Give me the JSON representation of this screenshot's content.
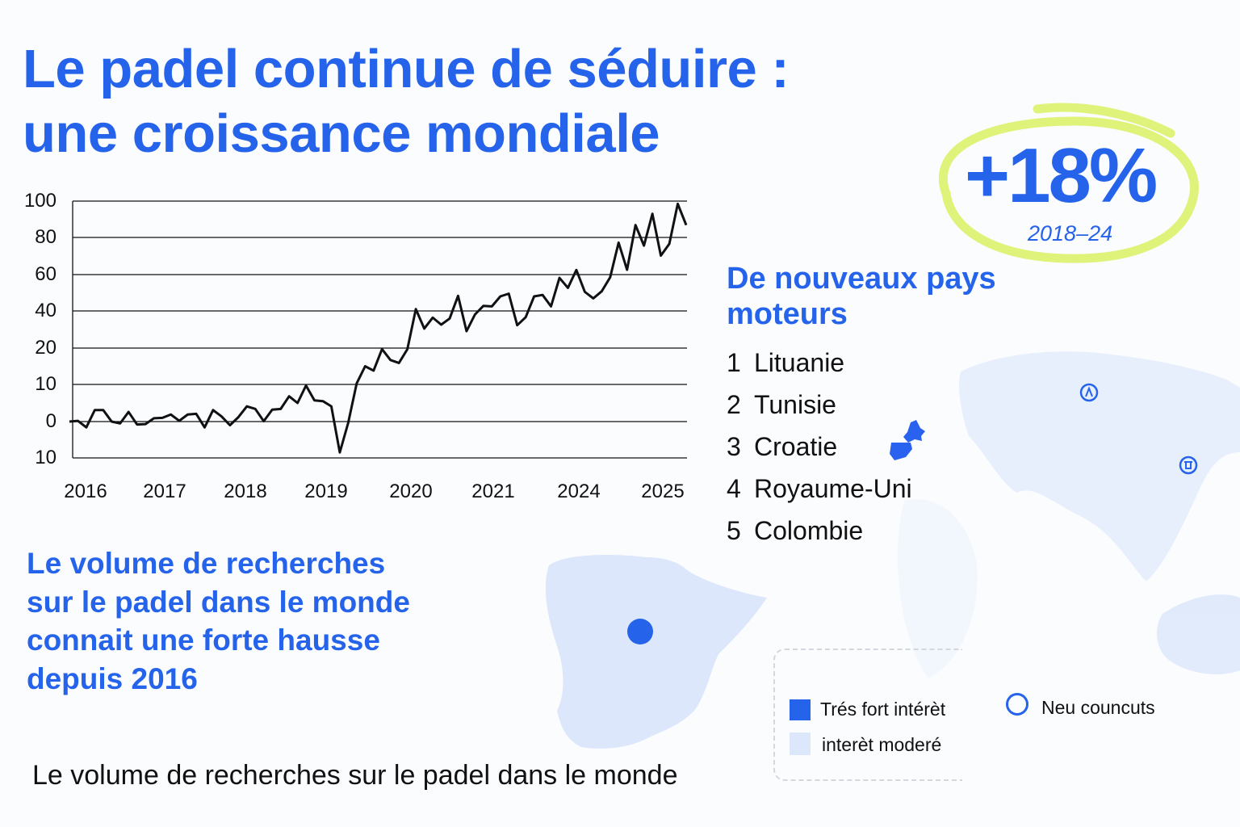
{
  "colors": {
    "accent": "#2563eb",
    "highlight": "#dff27a",
    "map_light": "#dde7fb",
    "line": "#111111"
  },
  "title": {
    "line1": "Le padel continue de séduire :",
    "line2": "une croissance mondiale"
  },
  "badge": {
    "value": "+18%",
    "period": "2018–24"
  },
  "countries": {
    "heading_line1": "De nouveaux pays",
    "heading_line2": "moteurs",
    "items": [
      {
        "rank": "1",
        "name": "Lituanie"
      },
      {
        "rank": "2",
        "name": "Tunisie"
      },
      {
        "rank": "3",
        "name": "Croatie"
      },
      {
        "rank": "4",
        "name": "Royaume-Uni"
      },
      {
        "rank": "5",
        "name": "Colombie"
      }
    ]
  },
  "description": {
    "lines": [
      "Le volume de recherches",
      "sur le padel dans le monde",
      "connait une forte hausse",
      "depuis 2016"
    ]
  },
  "caption": "Le volume de recherches sur le padel dans le monde",
  "legend": {
    "items": [
      {
        "label": "Trés fort intérèt",
        "color": "#2563eb",
        "icon": "filled-square"
      },
      {
        "label": "interèt moderé",
        "color": "#dde7fb",
        "icon": "light-square"
      },
      {
        "label": "Neu councuts",
        "color": "#2563eb",
        "icon": "ring"
      }
    ]
  },
  "map": {
    "icons": [
      "mountain-badge-icon",
      "gate-badge-icon"
    ],
    "marker": "spain-dot"
  },
  "chart_data": {
    "type": "line",
    "title": "",
    "xlabel": "",
    "ylabel": "",
    "y_tick_labels": [
      "100",
      "80",
      "60",
      "40",
      "20",
      "10",
      "0",
      "10"
    ],
    "y_tick_values": [
      100,
      80,
      60,
      40,
      20,
      10,
      0,
      -10
    ],
    "x_tick_labels": [
      "2016",
      "2017",
      "2018",
      "2019",
      "2020",
      "2021",
      "2024",
      "2025"
    ],
    "grid": "horizontal",
    "legend": "none",
    "series": [
      {
        "values": [
          0,
          0.2,
          -1.6,
          3.1,
          3.1,
          0,
          -0.5,
          2.6,
          -0.8,
          -0.7,
          0.9,
          1.0,
          1.9,
          0.2,
          1.9,
          2.1,
          -1.6,
          3.1,
          1.4,
          -1.0,
          1.2,
          4.1,
          3.4,
          0.1,
          3.2,
          3.4,
          6.8,
          5.0,
          9.7,
          5.7,
          5.5,
          4.1,
          -8.5,
          -0.3,
          10.3,
          15.0,
          13.8,
          19.7,
          16.7,
          15.9,
          19.7,
          41.0,
          30.5,
          36.4,
          32.6,
          35.9,
          48.3,
          29.1,
          38.1,
          42.8,
          42.5,
          48.0,
          49.5,
          32.3,
          36.6,
          48.0,
          48.8,
          42.5,
          58.2,
          52.7,
          62.5,
          50.5,
          46.9,
          50.8,
          58.5,
          77.2,
          62.6,
          86.8,
          75.6,
          93.0,
          70.2,
          76.5,
          98.5,
          86.8
        ]
      }
    ]
  }
}
